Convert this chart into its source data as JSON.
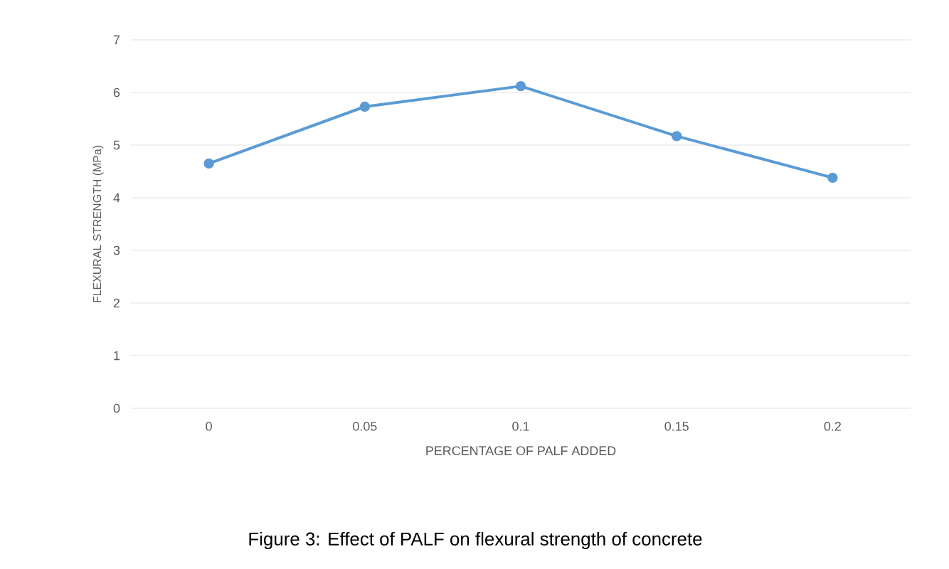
{
  "chart_data": {
    "type": "line",
    "xlabel": "PERCENTAGE  OF PALF ADDED",
    "ylabel": "FLEXURAL STRENGTH  (MPa)",
    "annotations": [
      "Figure 3: Effect of PALF on flexural strength of concrete"
    ],
    "categories": [
      "0",
      "0.05",
      "0.1",
      "0.15",
      "0.2"
    ],
    "series": [
      {
        "color": "#5b9bd5",
        "values": [
          4.65,
          5.73,
          6.12,
          5.17,
          4.38
        ]
      }
    ],
    "ylim": [
      0,
      7
    ],
    "yticks": [
      0,
      1,
      2,
      3,
      4,
      5,
      6,
      7
    ],
    "grid": "y",
    "marker": "circle",
    "line_style": "solid"
  }
}
